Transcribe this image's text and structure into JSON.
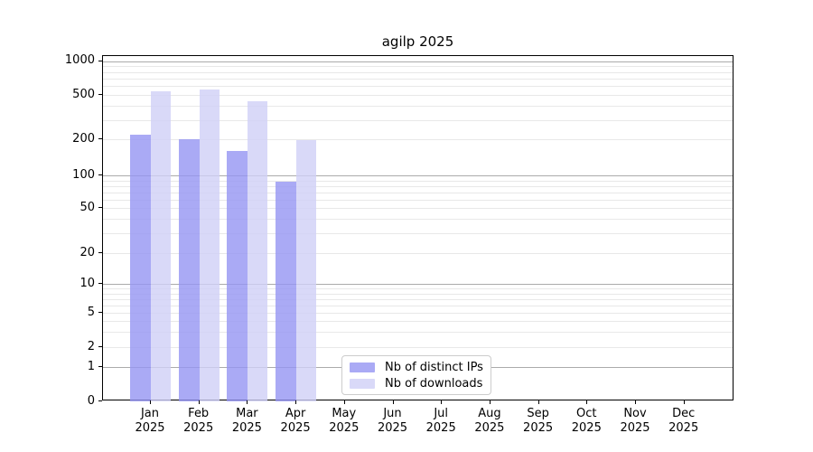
{
  "title": "agilp 2025",
  "chart_data": {
    "type": "bar",
    "title": "agilp 2025",
    "xlabel": "",
    "ylabel": "",
    "year": "2025",
    "categories": [
      "Jan",
      "Feb",
      "Mar",
      "Apr",
      "May",
      "Jun",
      "Jul",
      "Aug",
      "Sep",
      "Oct",
      "Nov",
      "Dec"
    ],
    "series": [
      {
        "name": "Nb of distinct IPs",
        "color": "rgba(149,149,242,0.8)",
        "values": [
          220,
          203,
          160,
          88,
          0,
          0,
          0,
          0,
          0,
          0,
          0,
          0
        ]
      },
      {
        "name": "Nb of downloads",
        "color": "rgba(208,208,246,0.8)",
        "values": [
          545,
          565,
          445,
          197,
          0,
          0,
          0,
          0,
          0,
          0,
          0,
          0
        ]
      }
    ],
    "y_axis": {
      "scale": "symlog",
      "ticks": [
        0,
        1,
        2,
        5,
        10,
        20,
        50,
        100,
        200,
        500,
        1000
      ],
      "ylim": [
        0,
        1000
      ]
    },
    "grid": true,
    "legend": {
      "position": "lower-center",
      "entries": [
        "Nb of distinct IPs",
        "Nb of downloads"
      ]
    }
  }
}
